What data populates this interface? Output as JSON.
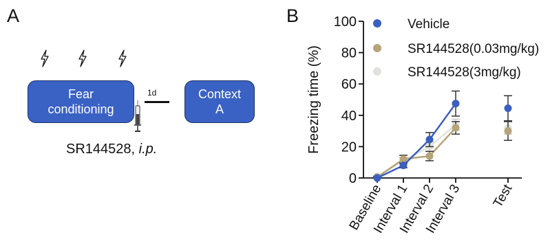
{
  "panel_a": {
    "label": "A",
    "boxes": [
      "Fear\nconditioning",
      "Context\nA"
    ],
    "gap_label": "1d",
    "drug": "SR144528, ",
    "route": "i.p.",
    "icons": [
      "lightning-bolt-icon",
      "syringe-icon"
    ]
  },
  "panel_b": {
    "label": "B"
  },
  "colors": {
    "vehicle": "#3b5fc0",
    "low_dose": "#b6a47a",
    "high_dose": "#e2e2dd",
    "box_fill": "#3a62c4"
  },
  "chart_data": {
    "type": "line",
    "title": "",
    "xlabel": "",
    "ylabel": "Freezing time (%)",
    "ylim": [
      0,
      100
    ],
    "yticks": [
      0,
      20,
      40,
      60,
      80,
      100
    ],
    "categories": [
      "Baseline",
      "Interval 1",
      "Interval 2",
      "Interval 3",
      "Test"
    ],
    "legend_position": "top-right",
    "series": [
      {
        "name": "Vehicle",
        "color": "#3b5fc0",
        "values": [
          0,
          8,
          24.5,
          47.5,
          44.5
        ],
        "errors": [
          0.5,
          1.5,
          4.5,
          8,
          8
        ]
      },
      {
        "name": "SR144528(0.03mg/kg)",
        "color": "#b6a47a",
        "values": [
          0.5,
          12,
          14,
          32,
          30
        ],
        "errors": [
          0.5,
          2.5,
          3,
          4,
          6
        ]
      },
      {
        "name": "SR144528(3mg/kg)",
        "color": "#e2e2dd",
        "values": [
          1,
          11,
          20,
          34,
          32
        ],
        "errors": [
          0.5,
          2,
          3,
          3.5,
          4
        ]
      }
    ]
  }
}
